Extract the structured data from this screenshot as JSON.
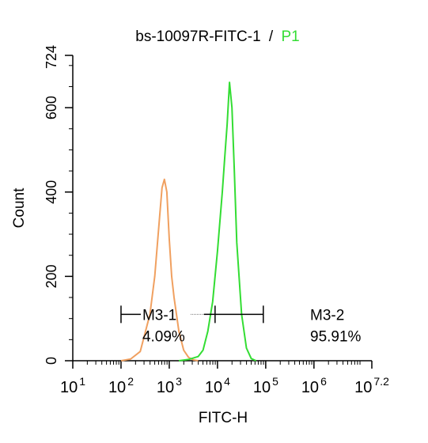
{
  "chart_data": {
    "type": "histogram",
    "title": "bs-10097R-FITC-1",
    "title_separator": "/",
    "title_gate": "P1",
    "xlabel": "FITC-H",
    "ylabel": "Count",
    "x_scale": "log",
    "xlim": [
      10,
      15848931.92
    ],
    "ylim": [
      0,
      724
    ],
    "y_ticks": [
      {
        "value": 0,
        "label": "0"
      },
      {
        "value": 200,
        "label": "200"
      },
      {
        "value": 400,
        "label": "400"
      },
      {
        "value": 600,
        "label": "600"
      },
      {
        "value": 724,
        "label": "724"
      }
    ],
    "x_ticks": [
      {
        "value": 10,
        "base": "10",
        "exp": "1"
      },
      {
        "value": 100,
        "base": "10",
        "exp": "2"
      },
      {
        "value": 1000,
        "base": "10",
        "exp": "3"
      },
      {
        "value": 10000,
        "base": "10",
        "exp": "4"
      },
      {
        "value": 100000,
        "base": "10",
        "exp": "5"
      },
      {
        "value": 1000000,
        "base": "10",
        "exp": "6"
      },
      {
        "value": 15848931.92,
        "base": "10",
        "exp": "7.2"
      }
    ],
    "series": [
      {
        "color": "#f0a060",
        "x": [
          100,
          158,
          251,
          398,
          501,
          631,
          708,
          794,
          891,
          1000,
          1122,
          1259,
          1585,
          1995,
          2512,
          3162,
          3981
        ],
        "y": [
          0,
          4,
          22,
          110,
          200,
          340,
          410,
          430,
          400,
          290,
          200,
          150,
          70,
          25,
          8,
          2,
          0
        ]
      },
      {
        "color": "#33dd33",
        "x": [
          1585,
          2512,
          3981,
          5012,
          6310,
          7943,
          10000,
          12589,
          14125,
          15849,
          17783,
          19953,
          22387,
          25119,
          31623,
          39811,
          50119,
          63096
        ],
        "y": [
          0,
          3,
          10,
          25,
          70,
          140,
          260,
          400,
          480,
          560,
          660,
          600,
          450,
          280,
          110,
          30,
          5,
          0
        ]
      }
    ],
    "markers": [
      {
        "name": "M3-1",
        "percent": "4.09%",
        "range": [
          100,
          8913
        ]
      },
      {
        "name": "M3-2",
        "percent": "95.91%",
        "range": [
          8913,
          89125
        ]
      }
    ],
    "marker_y": 110,
    "colors": {
      "axis": "#000000",
      "title_gate": "#33dd33"
    }
  }
}
